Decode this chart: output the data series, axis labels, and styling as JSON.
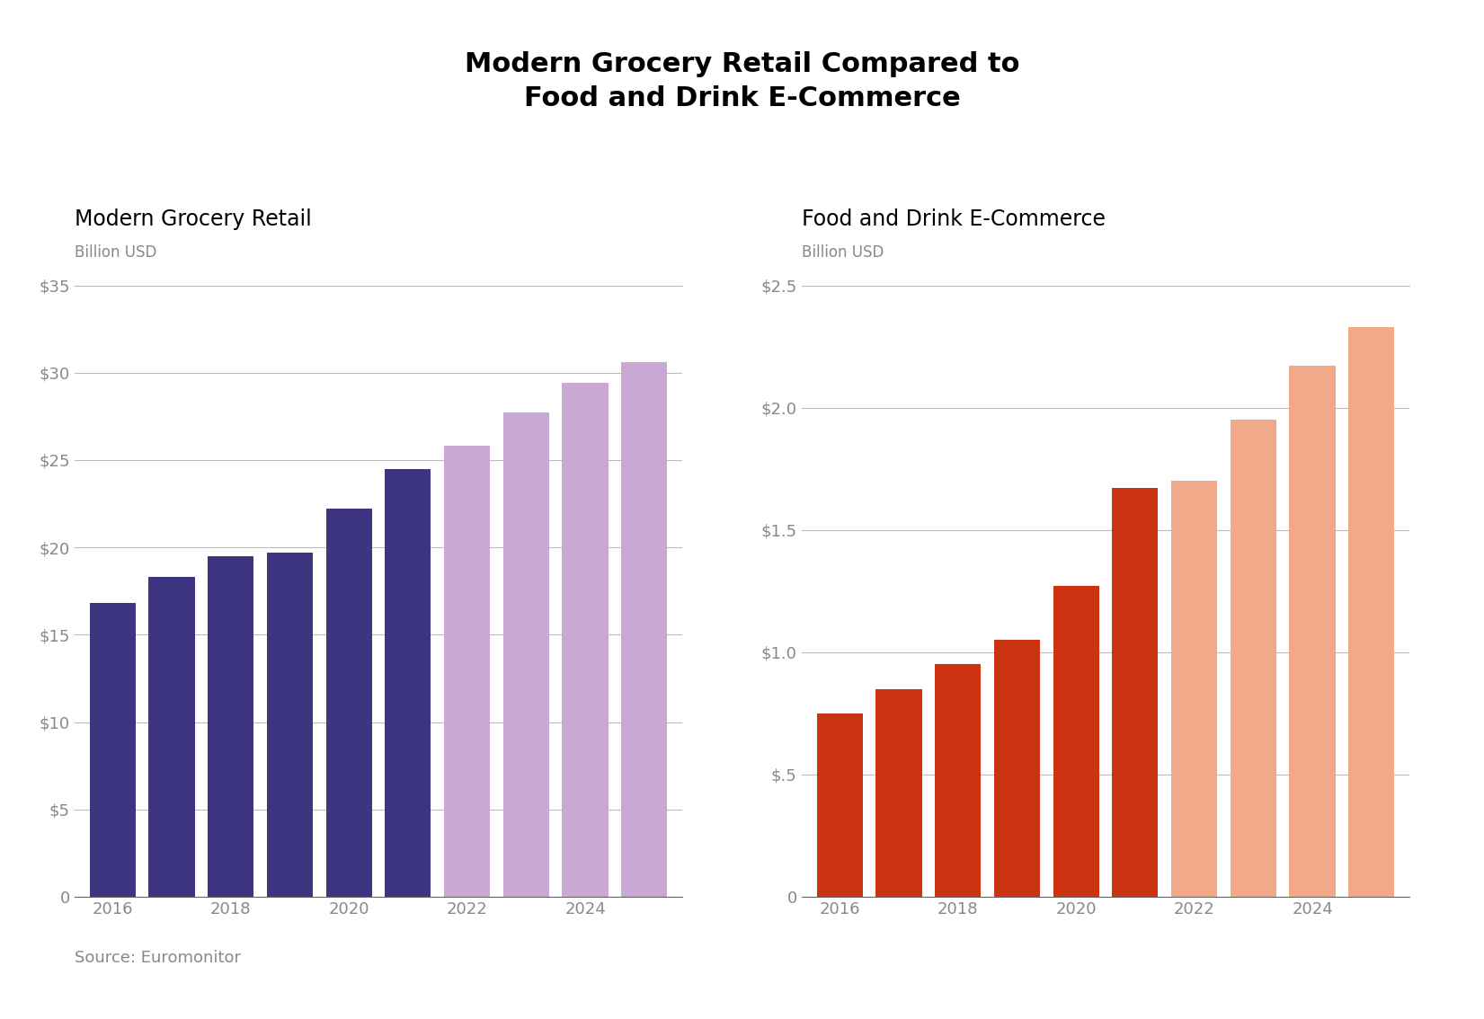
{
  "title": "Modern Grocery Retail Compared to\nFood and Drink E-Commerce",
  "title_fontsize": 22,
  "title_fontweight": "bold",
  "left_chart": {
    "subtitle": "Modern Grocery Retail",
    "unit_label": "Billion USD",
    "years": [
      2016,
      2017,
      2018,
      2019,
      2020,
      2021,
      2022,
      2023,
      2024,
      2025
    ],
    "values": [
      16.8,
      18.3,
      19.5,
      19.7,
      22.2,
      24.5,
      25.8,
      27.7,
      29.4,
      30.6
    ],
    "colors_actual": "#3d3580",
    "colors_forecast": "#c9a8d4",
    "cutoff_year": 2022,
    "ylim": [
      0,
      35
    ],
    "yticks": [
      0,
      5,
      10,
      15,
      20,
      25,
      30,
      35
    ],
    "ytick_labels": [
      "0",
      "$5",
      "$10",
      "$15",
      "$20",
      "$25",
      "$30",
      "$35"
    ]
  },
  "right_chart": {
    "subtitle": "Food and Drink E-Commerce",
    "unit_label": "Billion USD",
    "years": [
      2016,
      2017,
      2018,
      2019,
      2020,
      2021,
      2022,
      2023,
      2024,
      2025
    ],
    "values": [
      0.75,
      0.85,
      0.95,
      1.05,
      1.27,
      1.67,
      1.7,
      1.95,
      2.17,
      2.33
    ],
    "colors_actual": "#cc3311",
    "colors_forecast": "#f2a98a",
    "cutoff_year": 2022,
    "ylim": [
      0,
      2.5
    ],
    "yticks": [
      0,
      0.5,
      1.0,
      1.5,
      2.0,
      2.5
    ],
    "ytick_labels": [
      "0",
      "$.5",
      "$1.0",
      "$1.5",
      "$2.0",
      "$2.5"
    ]
  },
  "source_text": "Source: Euromonitor",
  "background_color": "#ffffff",
  "axis_label_color": "#888888",
  "tick_label_color": "#888888",
  "grid_color": "#bbbbbb",
  "subtitle_fontsize": 17,
  "unit_fontsize": 12,
  "tick_fontsize": 13,
  "source_fontsize": 13
}
